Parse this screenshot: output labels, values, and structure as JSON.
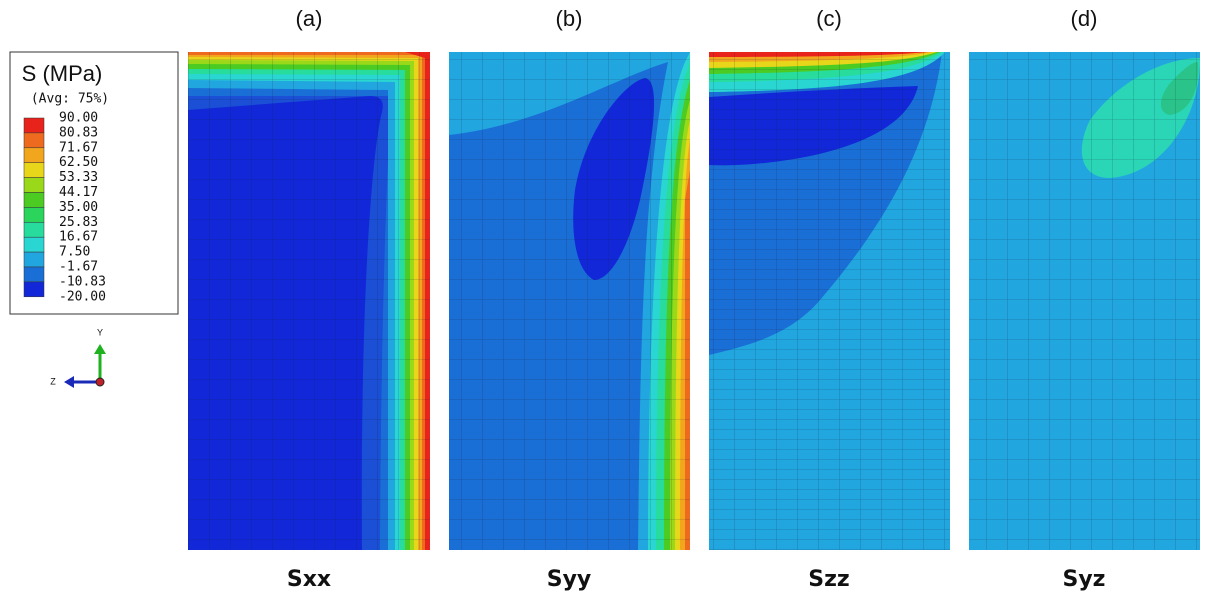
{
  "legend": {
    "title": "S (MPa)",
    "subtitle": "(Avg: 75%)",
    "levels": [
      "90.00",
      "80.83",
      "71.67",
      "62.50",
      "53.33",
      "44.17",
      "35.00",
      "25.83",
      "16.67",
      "7.50",
      "-1.67",
      "-10.83",
      "-20.00"
    ],
    "colors": [
      "#e8231c",
      "#ee6a1f",
      "#f2a61e",
      "#e8d61a",
      "#9ad81a",
      "#4ccc22",
      "#2bd45a",
      "#27dc9c",
      "#2ad6d2",
      "#22a6e0",
      "#1a6fd6",
      "#1228d8"
    ]
  },
  "axes": {
    "y": "Y",
    "z": "Z"
  },
  "panels": [
    {
      "label": "(a)",
      "name": "Sxx"
    },
    {
      "label": "(b)",
      "name": "Syy"
    },
    {
      "label": "(c)",
      "name": "Szz"
    },
    {
      "label": "(d)",
      "name": "Syz"
    }
  ]
}
